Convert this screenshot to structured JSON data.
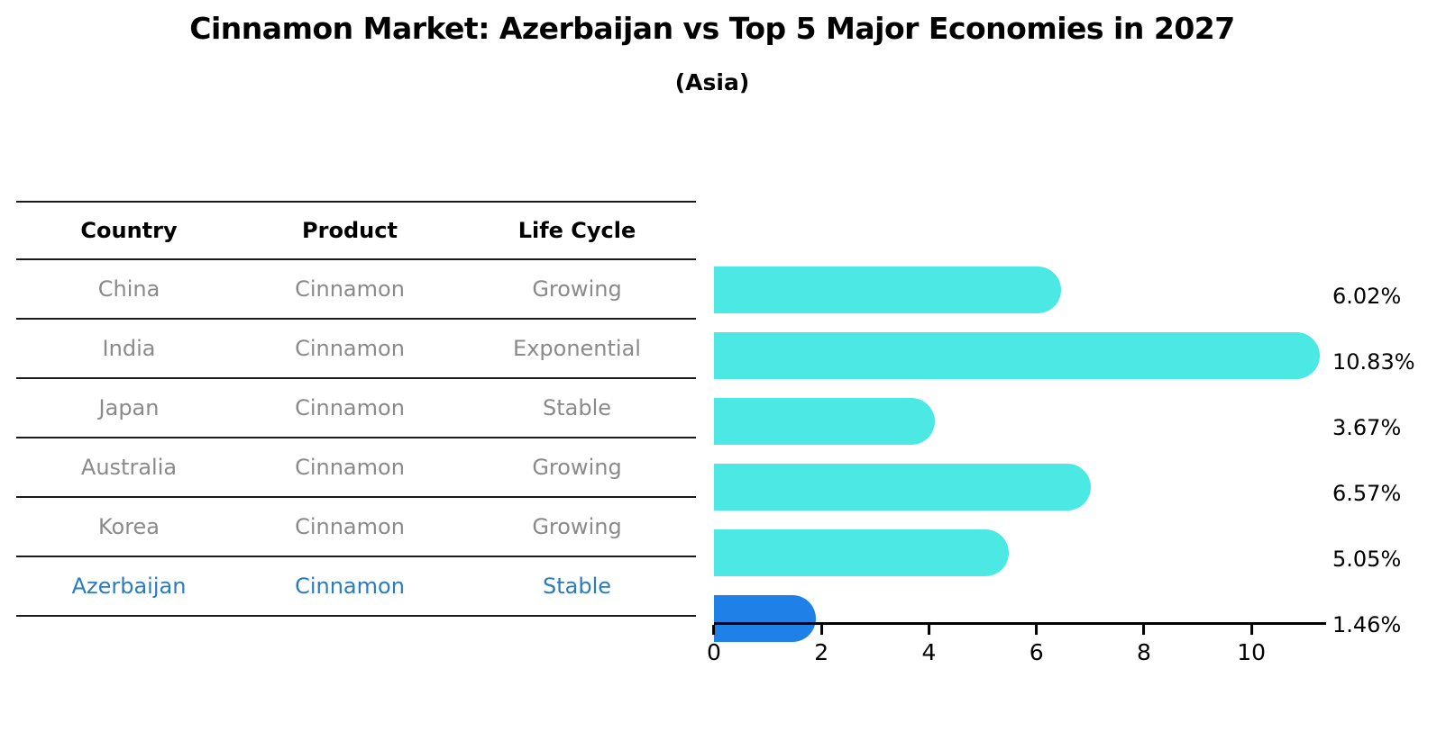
{
  "title": "Cinnamon Market: Azerbaijan vs Top 5 Major Economies in 2027",
  "subtitle": "(Asia)",
  "table": {
    "headers": [
      "Country",
      "Product",
      "Life Cycle"
    ],
    "rows": [
      {
        "country": "China",
        "product": "Cinnamon",
        "life_cycle": "Growing",
        "highlight": false
      },
      {
        "country": "India",
        "product": "Cinnamon",
        "life_cycle": "Exponential",
        "highlight": false
      },
      {
        "country": "Japan",
        "product": "Cinnamon",
        "life_cycle": "Stable",
        "highlight": false
      },
      {
        "country": "Australia",
        "product": "Cinnamon",
        "life_cycle": "Growing",
        "highlight": false
      },
      {
        "country": "Korea",
        "product": "Cinnamon",
        "life_cycle": "Growing",
        "highlight": false
      },
      {
        "country": "Azerbaijan",
        "product": "Cinnamon",
        "life_cycle": "Stable",
        "highlight": true
      }
    ]
  },
  "chart_data": {
    "type": "bar",
    "orientation": "horizontal",
    "title": "Cinnamon Market: Azerbaijan vs Top 5 Major Economies in 2027",
    "subtitle": "(Asia)",
    "categories": [
      "China",
      "India",
      "Japan",
      "Australia",
      "Korea",
      "Azerbaijan"
    ],
    "values": [
      6.02,
      10.83,
      3.67,
      6.57,
      5.05,
      1.46
    ],
    "value_labels": [
      "6.02%",
      "10.83%",
      "3.67%",
      "6.57%",
      "5.05%",
      "1.46%"
    ],
    "unit": "percent",
    "x_ticks": [
      0,
      2,
      4,
      6,
      8,
      10
    ],
    "xlim": [
      0,
      11.39
    ],
    "grid": false,
    "legend": false,
    "highlight_index": 5,
    "colors": {
      "bar": "#4be8e4",
      "highlight_bar": "#1f80e8",
      "highlight_text": "#2a7cc2",
      "cell_text": "#8a8a8a",
      "axis": "#000000"
    }
  }
}
